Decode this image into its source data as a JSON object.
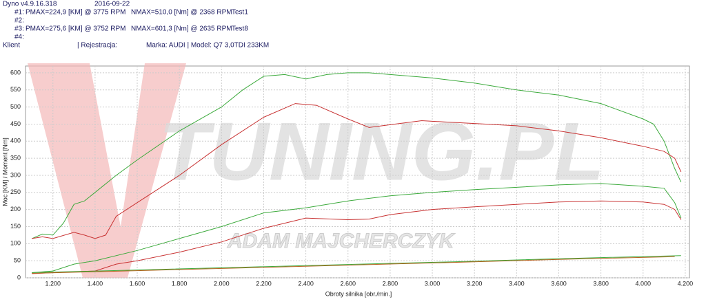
{
  "header": {
    "software": "Dyno v4.9.16.318",
    "date": "2016-09-22",
    "runs": [
      {
        "id": "#1:",
        "pmax": "PMAX=224,9 [KM] @ 3775 RPM",
        "nmax": "NMAX=510,0 [Nm] @ 2368 RPM",
        "test": "Test1"
      },
      {
        "id": "#2:"
      },
      {
        "id": "#3:",
        "pmax": "PMAX=275,6 [KM] @ 3752 RPM",
        "nmax": "NMAX=601,3 [Nm] @ 2635 RPM",
        "test": "Test8"
      },
      {
        "id": "#4:"
      }
    ],
    "client": "Klient",
    "registration": "| Rejestracja:",
    "vehicle": "Marka: AUDI | Model: Q7 3,0TDI 233KM"
  },
  "chart_data": {
    "type": "line",
    "xlabel": "Obroty silnika [obr./min.]",
    "ylabel": "Moc [KM] / Moment [Nm]",
    "watermark": "TUNING.PL",
    "watermark_sub": "ADAM MAJCHERCZYK",
    "xlim": [
      1070,
      4220
    ],
    "ylim": [
      0,
      620
    ],
    "xticks": [
      {
        "value": 1200,
        "label": "1.200"
      },
      {
        "value": 1400,
        "label": "1.400"
      },
      {
        "value": 1600,
        "label": "1.600"
      },
      {
        "value": 1800,
        "label": "1.800"
      },
      {
        "value": 2000,
        "label": "2.000"
      },
      {
        "value": 2200,
        "label": "2.200"
      },
      {
        "value": 2400,
        "label": "2.400"
      },
      {
        "value": 2600,
        "label": "2.600"
      },
      {
        "value": 2800,
        "label": "2.800"
      },
      {
        "value": 3000,
        "label": "3.000"
      },
      {
        "value": 3200,
        "label": "3.200"
      },
      {
        "value": 3400,
        "label": "3.400"
      },
      {
        "value": 3600,
        "label": "3.600"
      },
      {
        "value": 3800,
        "label": "3.800"
      },
      {
        "value": 4000,
        "label": "4.000"
      },
      {
        "value": 4200,
        "label": "4.200"
      }
    ],
    "yticks": [
      0,
      50,
      100,
      150,
      200,
      250,
      300,
      350,
      400,
      450,
      500,
      550,
      600
    ],
    "grid": true,
    "series": [
      {
        "color": "#3caa3c",
        "x": [
          1100,
          1150,
          1200,
          1250,
          1300,
          1350,
          1400,
          1500,
          1600,
          1800,
          2000,
          2100,
          2200,
          2300,
          2400,
          2500,
          2600,
          2700,
          2800,
          3000,
          3200,
          3400,
          3600,
          3800,
          4000,
          4050,
          4100,
          4150,
          4180
        ],
        "values": [
          115,
          128,
          125,
          160,
          215,
          225,
          250,
          300,
          345,
          430,
          500,
          550,
          590,
          595,
          582,
          595,
          600,
          600,
          595,
          585,
          570,
          550,
          535,
          510,
          465,
          450,
          400,
          320,
          280
        ]
      },
      {
        "color": "#c83232",
        "x": [
          1100,
          1150,
          1200,
          1300,
          1350,
          1400,
          1450,
          1500,
          1600,
          1800,
          2000,
          2200,
          2350,
          2450,
          2600,
          2700,
          2800,
          2950,
          3100,
          3400,
          3600,
          3800,
          4000,
          4100,
          4150,
          4180
        ],
        "values": [
          115,
          120,
          115,
          133,
          125,
          115,
          125,
          180,
          220,
          300,
          390,
          470,
          510,
          505,
          465,
          440,
          448,
          460,
          455,
          445,
          430,
          410,
          385,
          370,
          350,
          310
        ]
      },
      {
        "color": "#3caa3c",
        "x": [
          1100,
          1200,
          1300,
          1400,
          1600,
          1800,
          2000,
          2200,
          2400,
          2600,
          2800,
          3000,
          3200,
          3400,
          3600,
          3800,
          4000,
          4100,
          4150,
          4180
        ],
        "values": [
          15,
          20,
          40,
          50,
          80,
          115,
          150,
          190,
          205,
          225,
          240,
          250,
          258,
          265,
          272,
          276,
          268,
          262,
          220,
          175
        ]
      },
      {
        "color": "#c83232",
        "x": [
          1100,
          1200,
          1400,
          1500,
          1600,
          1800,
          2000,
          2200,
          2400,
          2600,
          2700,
          2800,
          3000,
          3200,
          3400,
          3600,
          3800,
          4000,
          4100,
          4150,
          4180
        ],
        "values": [
          12,
          15,
          20,
          40,
          50,
          75,
          105,
          145,
          175,
          170,
          172,
          185,
          200,
          208,
          215,
          222,
          225,
          222,
          215,
          200,
          170
        ]
      },
      {
        "color": "#3caa3c",
        "x": [
          1100,
          1600,
          2100,
          2600,
          3100,
          3600,
          4180
        ],
        "values": [
          15,
          23,
          31,
          39,
          47,
          56,
          65
        ]
      },
      {
        "color": "#b4641e",
        "x": [
          1100,
          1600,
          2100,
          2600,
          3100,
          3600,
          4150
        ],
        "values": [
          13,
          21,
          29,
          37,
          45,
          54,
          62
        ]
      }
    ]
  }
}
